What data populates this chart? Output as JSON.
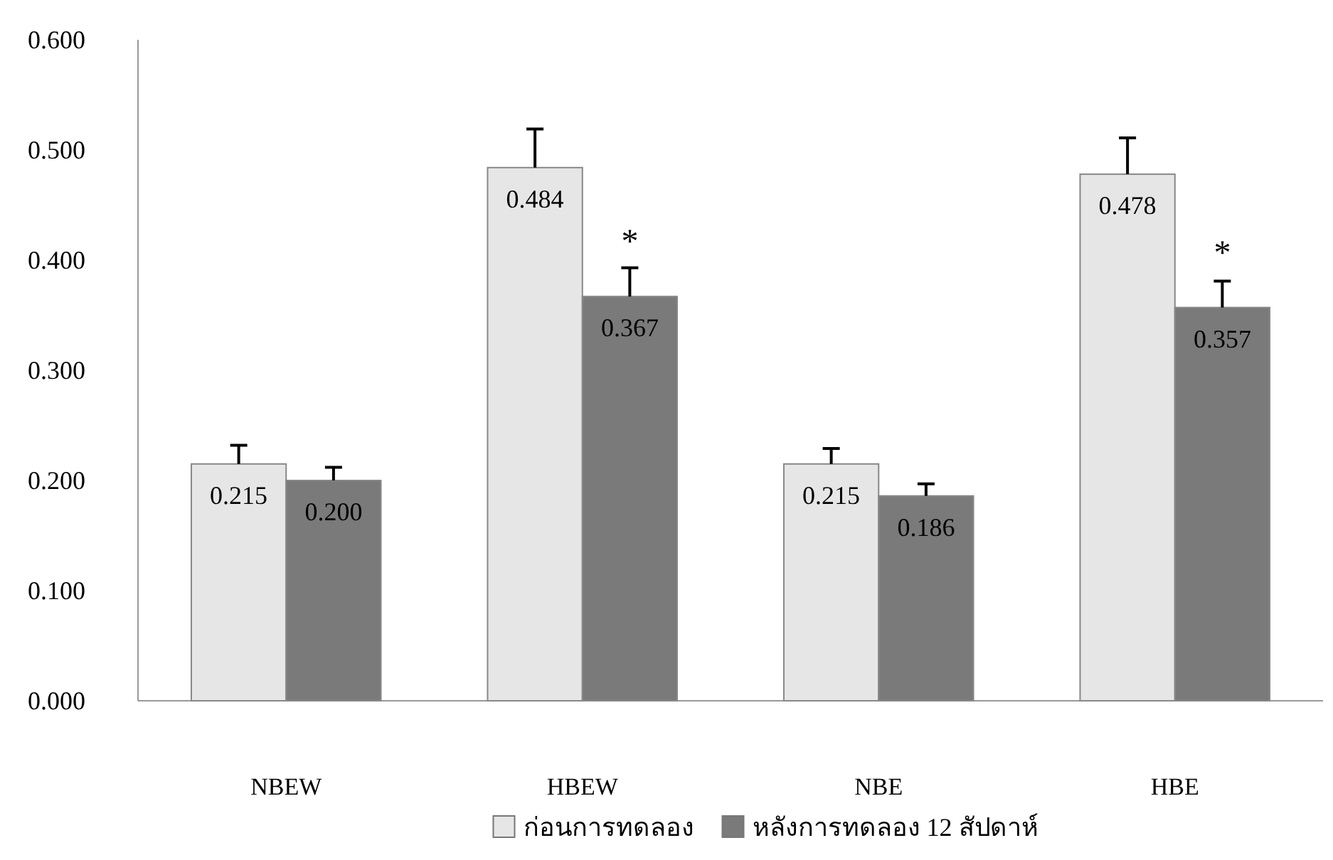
{
  "chart_data": {
    "type": "bar",
    "categories": [
      "NBEW",
      "HBEW",
      "NBE",
      "HBE"
    ],
    "series": [
      {
        "name": "ก่อนการทดลอง",
        "color": "#e6e6e6",
        "values": [
          0.215,
          0.484,
          0.215,
          0.478
        ],
        "value_labels": [
          "0.215",
          "0.484",
          "0.215",
          "0.478"
        ],
        "errors": [
          [
            0.215,
            0.232
          ],
          [
            0.484,
            0.519
          ],
          [
            0.215,
            0.229
          ],
          [
            0.478,
            0.511
          ]
        ]
      },
      {
        "name": "หลังการทดลอง 12 สัปดาห์",
        "color": "#7a7a7a",
        "values": [
          0.2,
          0.367,
          0.186,
          0.357
        ],
        "value_labels": [
          "0.200",
          "0.367",
          "0.186",
          "0.357"
        ],
        "errors": [
          [
            0.2,
            0.212
          ],
          [
            0.367,
            0.393
          ],
          [
            0.186,
            0.197
          ],
          [
            0.357,
            0.381
          ]
        ]
      }
    ],
    "ylim": [
      0,
      0.6
    ],
    "yticks": [
      {
        "value": 0,
        "label": "0.000"
      },
      {
        "value": 0.1,
        "label": "0.100"
      },
      {
        "value": 0.2,
        "label": "0.200"
      },
      {
        "value": 0.3,
        "label": "0.300"
      },
      {
        "value": 0.4,
        "label": "0.400"
      },
      {
        "value": 0.5,
        "label": "0.500"
      },
      {
        "value": 0.6,
        "label": "0.600"
      }
    ],
    "grid": false,
    "legend": "bottom",
    "annotations": [
      {
        "text": "*",
        "x": "HBEW",
        "y": 0.42
      },
      {
        "text": "*",
        "x": "HBE",
        "y": 0.41
      }
    ]
  }
}
